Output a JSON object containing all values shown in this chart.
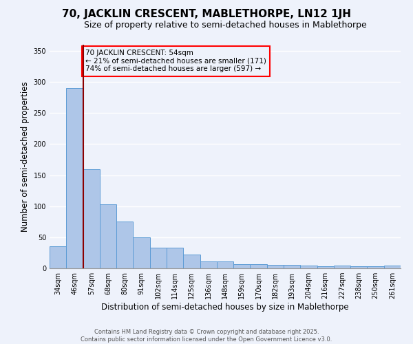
{
  "title": "70, JACKLIN CRESCENT, MABLETHORPE, LN12 1JH",
  "subtitle": "Size of property relative to semi-detached houses in Mablethorpe",
  "xlabel": "Distribution of semi-detached houses by size in Mablethorpe",
  "ylabel": "Number of semi-detached properties",
  "categories": [
    "34sqm",
    "46sqm",
    "57sqm",
    "68sqm",
    "80sqm",
    "91sqm",
    "102sqm",
    "114sqm",
    "125sqm",
    "136sqm",
    "148sqm",
    "159sqm",
    "170sqm",
    "182sqm",
    "193sqm",
    "204sqm",
    "216sqm",
    "227sqm",
    "238sqm",
    "250sqm",
    "261sqm"
  ],
  "values": [
    35,
    290,
    160,
    103,
    75,
    50,
    33,
    33,
    22,
    11,
    11,
    7,
    7,
    6,
    5,
    4,
    3,
    4,
    3,
    3,
    4
  ],
  "bar_color": "#aec6e8",
  "bar_edge_color": "#5b9bd5",
  "red_line_index": 2,
  "annotation_text_line1": "70 JACKLIN CRESCENT: 54sqm",
  "annotation_text_line2": "← 21% of semi-detached houses are smaller (171)",
  "annotation_text_line3": "74% of semi-detached houses are larger (597) →",
  "ylim": [
    0,
    360
  ],
  "yticks": [
    0,
    50,
    100,
    150,
    200,
    250,
    300,
    350
  ],
  "footer_line1": "Contains HM Land Registry data © Crown copyright and database right 2025.",
  "footer_line2": "Contains public sector information licensed under the Open Government Licence v3.0.",
  "background_color": "#eef2fb",
  "grid_color": "#ffffff",
  "title_fontsize": 11,
  "subtitle_fontsize": 9,
  "axis_label_fontsize": 8.5,
  "tick_fontsize": 7,
  "annotation_fontsize": 7.5,
  "footer_fontsize": 6
}
